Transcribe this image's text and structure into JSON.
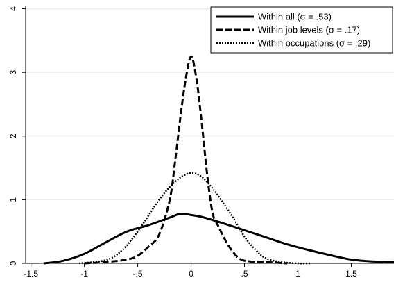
{
  "chart_data": {
    "type": "line",
    "title": "",
    "xlabel": "",
    "ylabel": "",
    "xlim": [
      -1.55,
      1.9
    ],
    "ylim": [
      0,
      4
    ],
    "grid": "horizontal",
    "legend_placement": "top-right",
    "x_ticks": [
      {
        "value": -1.5,
        "label": "-1.5"
      },
      {
        "value": -1.0,
        "label": "-1"
      },
      {
        "value": -0.5,
        "label": "-.5"
      },
      {
        "value": 0.0,
        "label": "0"
      },
      {
        "value": 0.5,
        "label": ".5"
      },
      {
        "value": 1.0,
        "label": "1"
      },
      {
        "value": 1.5,
        "label": "1.5"
      }
    ],
    "y_ticks": [
      {
        "value": 0,
        "label": "0"
      },
      {
        "value": 1,
        "label": "1"
      },
      {
        "value": 2,
        "label": "2"
      },
      {
        "value": 3,
        "label": "3"
      },
      {
        "value": 4,
        "label": "4"
      }
    ],
    "series": [
      {
        "name": "Within all (σ = .53)",
        "style": "solid",
        "color": "#000000",
        "points": [
          [
            -1.38,
            0.0
          ],
          [
            -1.2,
            0.04
          ],
          [
            -1.0,
            0.15
          ],
          [
            -0.8,
            0.33
          ],
          [
            -0.6,
            0.5
          ],
          [
            -0.4,
            0.6
          ],
          [
            -0.2,
            0.72
          ],
          [
            -0.1,
            0.78
          ],
          [
            0.0,
            0.76
          ],
          [
            0.1,
            0.73
          ],
          [
            0.3,
            0.63
          ],
          [
            0.5,
            0.52
          ],
          [
            0.7,
            0.41
          ],
          [
            0.9,
            0.3
          ],
          [
            1.1,
            0.21
          ],
          [
            1.3,
            0.13
          ],
          [
            1.5,
            0.06
          ],
          [
            1.7,
            0.03
          ],
          [
            1.9,
            0.02
          ]
        ]
      },
      {
        "name": "Within job levels (σ = .17)",
        "style": "dashed",
        "color": "#000000",
        "points": [
          [
            -1.0,
            0.0
          ],
          [
            -0.8,
            0.02
          ],
          [
            -0.6,
            0.06
          ],
          [
            -0.5,
            0.12
          ],
          [
            -0.4,
            0.26
          ],
          [
            -0.3,
            0.45
          ],
          [
            -0.2,
            1.0
          ],
          [
            -0.15,
            1.6
          ],
          [
            -0.1,
            2.3
          ],
          [
            -0.05,
            2.9
          ],
          [
            0.0,
            3.25
          ],
          [
            0.05,
            2.9
          ],
          [
            0.1,
            2.2
          ],
          [
            0.15,
            1.4
          ],
          [
            0.2,
            0.8
          ],
          [
            0.25,
            0.6
          ],
          [
            0.35,
            0.28
          ],
          [
            0.45,
            0.08
          ],
          [
            0.55,
            0.03
          ],
          [
            0.7,
            0.02
          ],
          [
            0.9,
            0.0
          ]
        ]
      },
      {
        "name": "Within occupations (σ = .29)",
        "style": "dotted",
        "color": "#000000",
        "points": [
          [
            -1.05,
            0.0
          ],
          [
            -0.8,
            0.05
          ],
          [
            -0.65,
            0.2
          ],
          [
            -0.5,
            0.5
          ],
          [
            -0.4,
            0.75
          ],
          [
            -0.3,
            1.0
          ],
          [
            -0.2,
            1.2
          ],
          [
            -0.1,
            1.35
          ],
          [
            0.0,
            1.42
          ],
          [
            0.1,
            1.36
          ],
          [
            0.2,
            1.18
          ],
          [
            0.3,
            0.95
          ],
          [
            0.4,
            0.7
          ],
          [
            0.5,
            0.42
          ],
          [
            0.6,
            0.22
          ],
          [
            0.7,
            0.08
          ],
          [
            0.85,
            0.02
          ],
          [
            1.0,
            0.0
          ],
          [
            1.12,
            0.0
          ]
        ]
      }
    ]
  }
}
